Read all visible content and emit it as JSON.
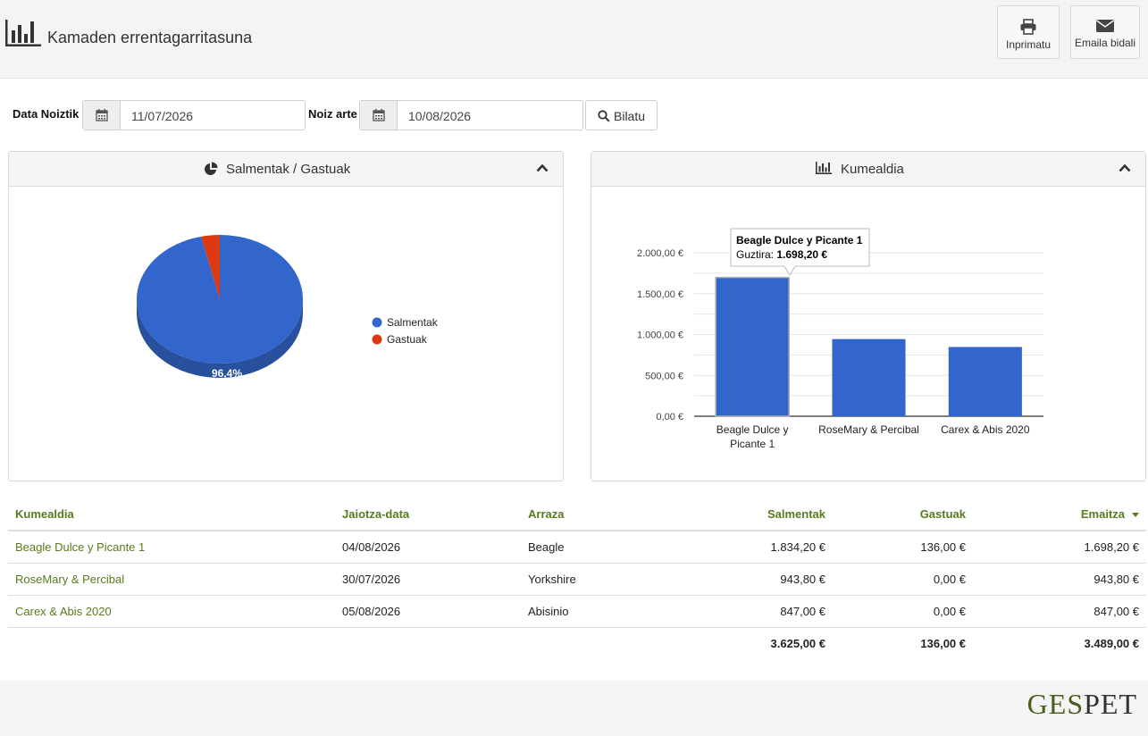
{
  "header": {
    "title": "Kamaden errentagarritasuna",
    "print_label": "Inprimatu",
    "email_label": "Emaila bidali"
  },
  "filters": {
    "from_label": "Data Noiztik",
    "from_value": "11/07/2026",
    "to_label": "Noiz arte",
    "to_value": "10/08/2026",
    "search_label": "Bilatu"
  },
  "pie_panel": {
    "title": "Salmentak / Gastuak",
    "slice_label": "96,4%"
  },
  "bar_panel": {
    "title": "Kumealdia",
    "tooltip_title": "Beagle Dulce y Picante 1",
    "tooltip_key": "Guztira:",
    "tooltip_value": "1.698,20 €"
  },
  "chart_data": [
    {
      "type": "pie",
      "categories": [
        "Salmentak",
        "Gastuak"
      ],
      "values": [
        96.4,
        3.6
      ],
      "colors": [
        "#3366cc",
        "#dc3912"
      ],
      "legend_position": "right"
    },
    {
      "type": "bar",
      "categories": [
        "Beagle Dulce y Picante 1",
        "RoseMary & Percibal",
        "Carex & Abis 2020"
      ],
      "values": [
        1698.2,
        943.8,
        847.0
      ],
      "ylim": [
        0,
        2000
      ],
      "yticks": [
        "0,00 €",
        "500,00 €",
        "1.000,00 €",
        "1.500,00 €",
        "2.000,00 €"
      ],
      "color": "#3366cc",
      "grid": true
    }
  ],
  "table": {
    "columns": [
      "Kumealdia",
      "Jaiotza-data",
      "Arraza",
      "Salmentak",
      "Gastuak",
      "Emaitza"
    ],
    "rows": [
      [
        "Beagle Dulce y Picante 1",
        "04/08/2026",
        "Beagle",
        "1.834,20 €",
        "136,00 €",
        "1.698,20 €"
      ],
      [
        "RoseMary & Percibal",
        "30/07/2026",
        "Yorkshire",
        "943,80 €",
        "0,00 €",
        "943,80 €"
      ],
      [
        "Carex & Abis 2020",
        "05/08/2026",
        "Abisinio",
        "847,00 €",
        "0,00 €",
        "847,00 €"
      ]
    ],
    "totals": [
      "3.625,00 €",
      "136,00 €",
      "3.489,00 €"
    ]
  },
  "footer": {
    "logo_part1": "GES",
    "logo_part2": "PET"
  }
}
